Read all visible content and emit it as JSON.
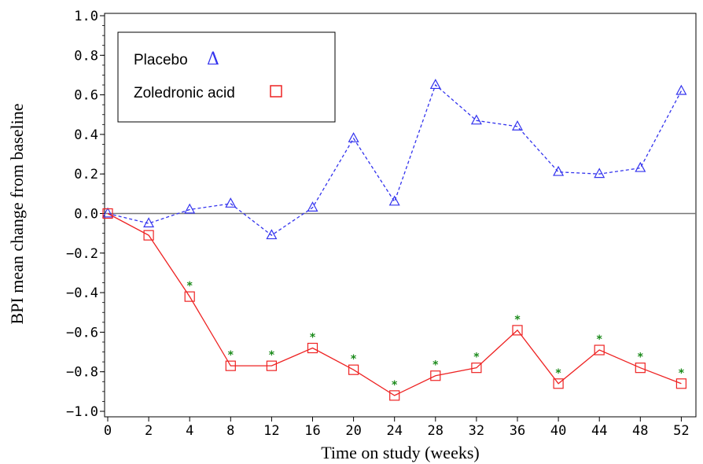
{
  "chart_data": {
    "type": "line",
    "title": "",
    "xlabel": "Time on study (weeks)",
    "ylabel": "BPI mean change from baseline",
    "categories": [
      "0",
      "2",
      "4",
      "8",
      "12",
      "16",
      "20",
      "24",
      "28",
      "32",
      "36",
      "40",
      "44",
      "48",
      "52"
    ],
    "ylim": [
      -1.0,
      1.0
    ],
    "yticks": [
      "1.0",
      "0.8",
      "0.6",
      "0.4",
      "0.2",
      "0.0",
      "-0.2",
      "-0.4",
      "-0.6",
      "-0.8",
      "-1.0"
    ],
    "grid": false,
    "reference_line_y": 0,
    "legend_placement": "top-left",
    "series": [
      {
        "name": "Placebo",
        "legend_symbol": "Δ",
        "marker": "triangle",
        "line_style": "dashed",
        "color": "#3333ee",
        "values": [
          0.0,
          -0.05,
          0.02,
          0.05,
          -0.11,
          0.03,
          0.38,
          0.06,
          0.65,
          0.47,
          0.44,
          0.21,
          0.2,
          0.23,
          0.62
        ]
      },
      {
        "name": "Zoledronic acid",
        "legend_symbol": "□",
        "marker": "square",
        "line_style": "solid",
        "color": "#ee2222",
        "values": [
          0.0,
          -0.11,
          -0.42,
          -0.77,
          -0.77,
          -0.68,
          -0.79,
          -0.92,
          -0.82,
          -0.78,
          -0.59,
          -0.86,
          -0.69,
          -0.78,
          -0.86
        ],
        "significance_marks": [
          false,
          false,
          true,
          true,
          true,
          true,
          true,
          true,
          true,
          true,
          true,
          true,
          true,
          true,
          true
        ],
        "significance_symbol": "*",
        "significance_color": "#1a8a1a"
      }
    ]
  }
}
